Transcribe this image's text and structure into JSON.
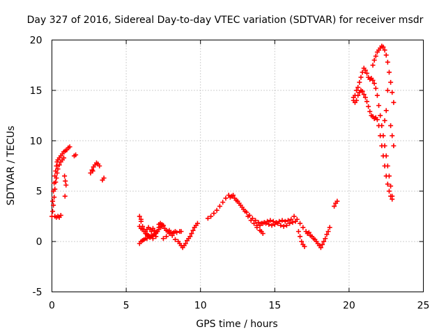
{
  "chart_data": {
    "type": "scatter",
    "title": "Day 327 of 2016, Sidereal Day-to-day VTEC variation (SDTVAR) for receiver msdr",
    "xlabel": "GPS time / hours",
    "ylabel": "SDTVAR / TECUs",
    "xlim": [
      0,
      25
    ],
    "ylim": [
      -5,
      20
    ],
    "xticks": [
      0,
      5,
      10,
      15,
      20,
      25
    ],
    "yticks": [
      -5,
      0,
      5,
      10,
      15,
      20
    ],
    "grid": true,
    "marker": "+",
    "color": "#ff0000",
    "legend": "none",
    "series": [
      {
        "points": [
          [
            0.0,
            2.5
          ],
          [
            0.05,
            4.0
          ],
          [
            0.1,
            5.0
          ],
          [
            0.15,
            5.8
          ],
          [
            0.2,
            6.5
          ],
          [
            0.25,
            7.0
          ],
          [
            0.3,
            7.5
          ],
          [
            0.35,
            7.9
          ],
          [
            0.4,
            8.1
          ],
          [
            0.5,
            8.3
          ],
          [
            0.6,
            8.5
          ],
          [
            0.7,
            8.7
          ],
          [
            0.8,
            8.9
          ],
          [
            0.9,
            9.0
          ],
          [
            1.0,
            9.1
          ],
          [
            1.1,
            9.3
          ],
          [
            1.2,
            9.4
          ],
          [
            0.05,
            3.0
          ],
          [
            0.1,
            3.6
          ],
          [
            0.15,
            4.4
          ],
          [
            0.2,
            5.2
          ],
          [
            0.25,
            5.9
          ],
          [
            0.3,
            6.3
          ],
          [
            0.35,
            6.8
          ],
          [
            0.4,
            7.2
          ],
          [
            0.5,
            7.6
          ],
          [
            0.6,
            7.9
          ],
          [
            0.7,
            8.1
          ],
          [
            0.8,
            8.3
          ],
          [
            0.2,
            2.5
          ],
          [
            0.3,
            2.4
          ],
          [
            0.4,
            2.5
          ],
          [
            0.5,
            2.4
          ],
          [
            0.6,
            2.6
          ],
          [
            0.85,
            6.5
          ],
          [
            0.9,
            6.0
          ],
          [
            0.95,
            5.6
          ],
          [
            0.88,
            4.5
          ],
          [
            1.6,
            8.6
          ],
          [
            1.5,
            8.5
          ]
        ]
      },
      {
        "points": [
          [
            2.6,
            6.8
          ],
          [
            2.7,
            7.1
          ],
          [
            2.8,
            7.4
          ],
          [
            2.9,
            7.6
          ],
          [
            3.0,
            7.8
          ],
          [
            3.1,
            7.7
          ],
          [
            3.2,
            7.5
          ],
          [
            2.75,
            7.0
          ],
          [
            3.4,
            6.1
          ],
          [
            3.5,
            6.3
          ]
        ]
      },
      {
        "points": [
          [
            5.9,
            2.5
          ],
          [
            6.0,
            2.0
          ],
          [
            6.1,
            1.5
          ],
          [
            6.2,
            1.2
          ],
          [
            6.3,
            1.0
          ],
          [
            6.4,
            1.2
          ],
          [
            6.5,
            1.4
          ],
          [
            6.6,
            1.2
          ],
          [
            6.7,
            1.0
          ],
          [
            6.8,
            1.3
          ],
          [
            6.9,
            1.1
          ],
          [
            7.0,
            0.9
          ],
          [
            7.1,
            1.0
          ],
          [
            7.2,
            1.2
          ],
          [
            7.3,
            1.5
          ],
          [
            7.4,
            1.7
          ],
          [
            7.5,
            1.6
          ],
          [
            7.6,
            1.3
          ],
          [
            7.7,
            1.1
          ],
          [
            7.8,
            1.0
          ],
          [
            7.9,
            1.1
          ],
          [
            8.0,
            0.9
          ],
          [
            8.1,
            0.8
          ],
          [
            8.2,
            0.9
          ],
          [
            8.3,
            1.0
          ],
          [
            8.4,
            0.9
          ],
          [
            5.9,
            1.5
          ],
          [
            6.0,
            1.3
          ],
          [
            6.1,
            1.2
          ],
          [
            6.2,
            1.0
          ],
          [
            6.3,
            0.8
          ],
          [
            6.4,
            0.7
          ],
          [
            6.5,
            0.6
          ],
          [
            6.6,
            0.5
          ],
          [
            6.7,
            0.5
          ],
          [
            6.8,
            0.6
          ],
          [
            6.9,
            0.7
          ],
          [
            7.0,
            0.8
          ],
          [
            7.1,
            1.0
          ],
          [
            7.2,
            1.4
          ],
          [
            7.3,
            1.8
          ],
          [
            7.4,
            1.5
          ],
          [
            5.9,
            -0.2
          ],
          [
            6.0,
            0.0
          ],
          [
            6.1,
            0.1
          ],
          [
            6.2,
            0.2
          ],
          [
            6.3,
            0.3
          ],
          [
            6.4,
            0.3
          ],
          [
            6.5,
            0.5
          ],
          [
            6.6,
            0.4
          ],
          [
            6.7,
            0.6
          ],
          [
            6.8,
            0.3
          ],
          [
            7.0,
            0.5
          ],
          [
            7.5,
            0.3
          ],
          [
            7.7,
            0.5
          ],
          [
            7.9,
            0.8
          ],
          [
            8.1,
            0.6
          ],
          [
            8.3,
            0.2
          ],
          [
            8.5,
            0.0
          ],
          [
            8.6,
            -0.2
          ],
          [
            8.7,
            -0.4
          ],
          [
            8.8,
            -0.6
          ],
          [
            8.9,
            -0.4
          ],
          [
            9.0,
            -0.2
          ],
          [
            9.1,
            0.1
          ],
          [
            9.2,
            0.3
          ],
          [
            9.3,
            0.5
          ],
          [
            9.4,
            0.8
          ],
          [
            9.5,
            1.1
          ],
          [
            9.6,
            1.4
          ],
          [
            9.7,
            1.6
          ],
          [
            9.8,
            1.8
          ],
          [
            8.6,
            1.0
          ],
          [
            8.7,
            1.0
          ],
          [
            7.2,
            1.7
          ],
          [
            6.0,
            2.2
          ]
        ]
      },
      {
        "points": [
          [
            10.5,
            2.3
          ],
          [
            10.7,
            2.5
          ],
          [
            10.9,
            2.8
          ],
          [
            11.1,
            3.1
          ],
          [
            11.3,
            3.5
          ],
          [
            11.5,
            3.9
          ],
          [
            11.7,
            4.3
          ],
          [
            11.9,
            4.6
          ],
          [
            12.1,
            4.5
          ],
          [
            12.3,
            4.3
          ],
          [
            12.5,
            4.0
          ],
          [
            12.7,
            3.6
          ],
          [
            12.9,
            3.2
          ],
          [
            13.1,
            2.9
          ],
          [
            13.3,
            2.6
          ],
          [
            13.5,
            2.3
          ],
          [
            13.7,
            2.1
          ],
          [
            13.9,
            1.9
          ],
          [
            14.1,
            1.8
          ],
          [
            14.3,
            1.9
          ],
          [
            14.5,
            2.0
          ],
          [
            14.7,
            2.1
          ],
          [
            14.9,
            2.0
          ],
          [
            15.1,
            1.9
          ],
          [
            15.3,
            2.0
          ],
          [
            15.5,
            2.1
          ],
          [
            15.7,
            2.0
          ],
          [
            15.9,
            2.1
          ],
          [
            16.1,
            2.2
          ],
          [
            16.3,
            2.5
          ],
          [
            16.5,
            2.2
          ],
          [
            16.7,
            1.8
          ],
          [
            12.0,
            4.4
          ],
          [
            12.2,
            4.6
          ],
          [
            12.4,
            4.1
          ],
          [
            12.6,
            3.8
          ],
          [
            12.8,
            3.4
          ],
          [
            13.0,
            3.0
          ],
          [
            13.2,
            2.5
          ],
          [
            13.4,
            2.1
          ],
          [
            13.6,
            1.8
          ],
          [
            13.8,
            1.6
          ],
          [
            14.0,
            1.6
          ],
          [
            14.2,
            1.8
          ],
          [
            14.4,
            1.8
          ],
          [
            14.6,
            1.7
          ],
          [
            14.8,
            1.6
          ],
          [
            15.0,
            1.7
          ],
          [
            15.2,
            1.8
          ],
          [
            15.4,
            1.6
          ],
          [
            15.6,
            1.5
          ],
          [
            15.8,
            1.6
          ],
          [
            16.0,
            1.8
          ],
          [
            16.2,
            1.9
          ],
          [
            16.4,
            2.0
          ],
          [
            13.8,
            1.4
          ],
          [
            14.0,
            1.1
          ],
          [
            14.1,
            1.0
          ],
          [
            14.2,
            0.8
          ],
          [
            16.6,
            1.0
          ],
          [
            16.7,
            0.5
          ],
          [
            16.8,
            0.0
          ],
          [
            16.9,
            -0.3
          ],
          [
            17.0,
            -0.5
          ],
          [
            17.2,
            0.8
          ],
          [
            17.4,
            0.6
          ],
          [
            17.6,
            0.3
          ],
          [
            17.8,
            0.0
          ],
          [
            17.9,
            -0.2
          ],
          [
            18.0,
            -0.4
          ],
          [
            18.1,
            -0.6
          ],
          [
            18.2,
            -0.3
          ],
          [
            18.3,
            0.0
          ],
          [
            18.4,
            0.3
          ],
          [
            18.5,
            0.7
          ],
          [
            18.6,
            1.0
          ],
          [
            18.7,
            1.4
          ],
          [
            16.9,
            1.4
          ],
          [
            17.1,
            1.0
          ],
          [
            17.3,
            0.9
          ],
          [
            17.5,
            0.5
          ],
          [
            17.7,
            0.2
          ],
          [
            19.0,
            3.5
          ],
          [
            19.1,
            3.8
          ],
          [
            19.2,
            4.0
          ]
        ]
      },
      {
        "points": [
          [
            20.3,
            14.0
          ],
          [
            20.4,
            14.5
          ],
          [
            20.5,
            15.0
          ],
          [
            20.6,
            15.3
          ],
          [
            20.7,
            15.8
          ],
          [
            20.8,
            16.3
          ],
          [
            20.9,
            16.8
          ],
          [
            21.0,
            17.2
          ],
          [
            21.1,
            17.0
          ],
          [
            21.2,
            16.7
          ],
          [
            21.3,
            16.3
          ],
          [
            21.4,
            16.1
          ],
          [
            21.5,
            16.2
          ],
          [
            21.6,
            16.0
          ],
          [
            21.7,
            15.7
          ],
          [
            21.8,
            15.2
          ],
          [
            21.9,
            14.5
          ],
          [
            22.0,
            13.5
          ],
          [
            22.1,
            12.5
          ],
          [
            22.2,
            11.5
          ],
          [
            22.3,
            10.5
          ],
          [
            22.4,
            9.5
          ],
          [
            22.5,
            8.5
          ],
          [
            22.6,
            7.5
          ],
          [
            22.7,
            6.5
          ],
          [
            22.8,
            5.5
          ],
          [
            22.9,
            4.5
          ],
          [
            20.3,
            14.3
          ],
          [
            20.4,
            13.8
          ],
          [
            20.5,
            14.0
          ],
          [
            20.6,
            14.5
          ],
          [
            20.7,
            14.8
          ],
          [
            20.8,
            15.0
          ],
          [
            20.9,
            14.9
          ],
          [
            21.0,
            14.6
          ],
          [
            21.1,
            14.3
          ],
          [
            21.2,
            13.9
          ],
          [
            21.3,
            13.4
          ],
          [
            21.4,
            12.9
          ],
          [
            21.5,
            12.5
          ],
          [
            21.6,
            12.4
          ],
          [
            21.7,
            12.2
          ],
          [
            21.8,
            12.3
          ],
          [
            21.9,
            12.1
          ],
          [
            22.0,
            11.5
          ],
          [
            22.1,
            10.5
          ],
          [
            22.2,
            9.5
          ],
          [
            22.3,
            8.5
          ],
          [
            22.4,
            7.5
          ],
          [
            22.5,
            6.5
          ],
          [
            22.6,
            5.7
          ],
          [
            22.7,
            5.0
          ],
          [
            22.8,
            4.5
          ],
          [
            22.9,
            4.2
          ],
          [
            21.6,
            17.5
          ],
          [
            21.7,
            18.0
          ],
          [
            21.8,
            18.4
          ],
          [
            21.9,
            18.8
          ],
          [
            22.0,
            19.0
          ],
          [
            22.1,
            19.2
          ],
          [
            22.2,
            19.4
          ],
          [
            22.3,
            19.3
          ],
          [
            22.4,
            19.0
          ],
          [
            22.5,
            18.5
          ],
          [
            22.6,
            17.8
          ],
          [
            22.7,
            16.8
          ],
          [
            22.8,
            15.8
          ],
          [
            22.9,
            14.8
          ],
          [
            23.0,
            13.8
          ],
          [
            22.8,
            11.5
          ],
          [
            22.9,
            10.5
          ],
          [
            23.0,
            9.5
          ],
          [
            22.6,
            15.0
          ],
          [
            22.5,
            13.0
          ],
          [
            22.4,
            12.0
          ]
        ]
      }
    ]
  }
}
